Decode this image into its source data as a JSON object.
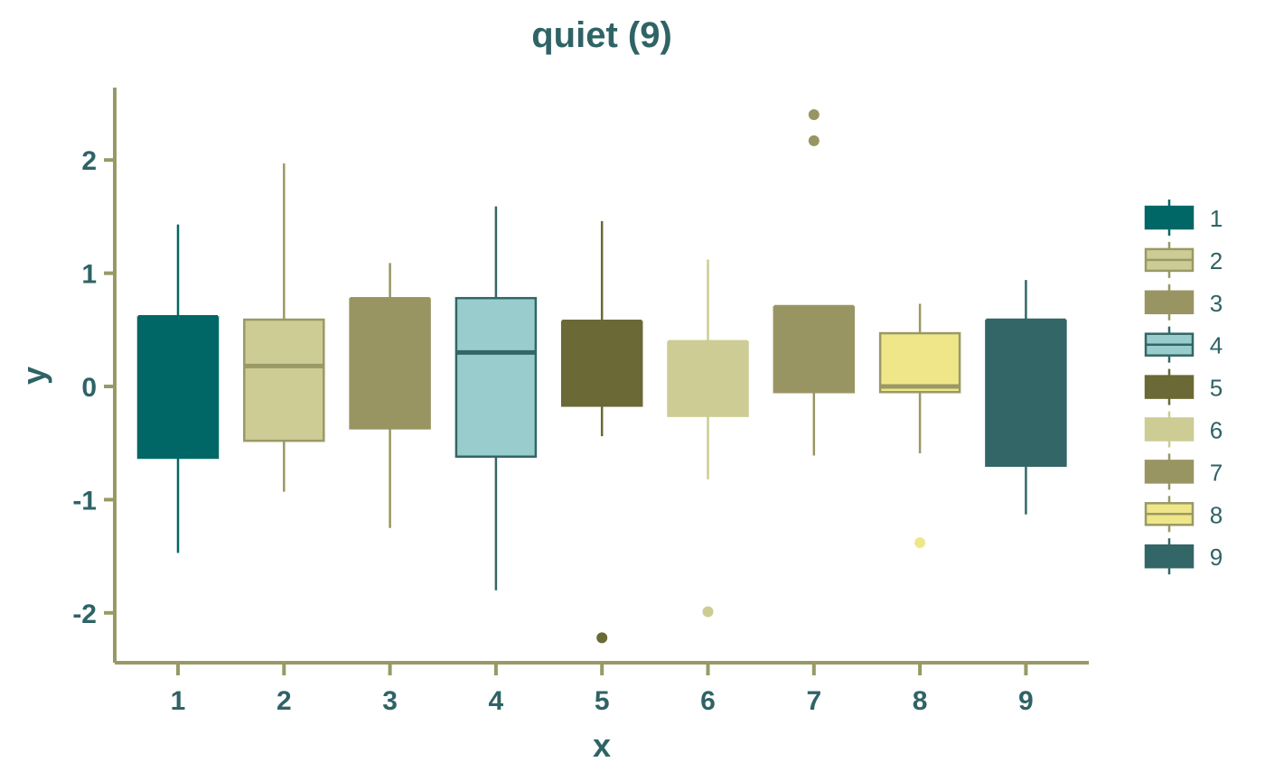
{
  "chart_data": {
    "type": "boxplot",
    "title": "quiet (9)",
    "xlabel": "x",
    "ylabel": "y",
    "ylim": [
      -2.5,
      2.6
    ],
    "yticks": [
      -2,
      -1,
      0,
      1,
      2
    ],
    "ytick_labels": [
      "-2",
      "-1",
      "0",
      "1",
      "2"
    ],
    "categories": [
      "1",
      "2",
      "3",
      "4",
      "5",
      "6",
      "7",
      "8",
      "9"
    ],
    "grid": false,
    "legend_placement": "right",
    "legend_labels": [
      "1",
      "2",
      "3",
      "4",
      "5",
      "6",
      "7",
      "8",
      "9"
    ],
    "boxes": [
      {
        "category": "1",
        "fill": "#006666",
        "line": "#006666",
        "whisker_low": -1.47,
        "q1": -0.63,
        "median": 0.61,
        "q3": 0.61,
        "whisker_high": 1.43,
        "outliers": []
      },
      {
        "category": "2",
        "fill": "#cccc94",
        "line": "#999966",
        "whisker_low": -0.93,
        "q1": -0.48,
        "median": 0.18,
        "q3": 0.59,
        "whisker_high": 1.97,
        "outliers": []
      },
      {
        "category": "3",
        "fill": "#999562",
        "line": "#999562",
        "whisker_low": -1.25,
        "q1": -0.37,
        "median": 0.77,
        "q3": 0.77,
        "whisker_high": 1.09,
        "outliers": []
      },
      {
        "category": "4",
        "fill": "#99cccc",
        "line": "#336666",
        "whisker_low": -1.8,
        "q1": -0.62,
        "median": 0.3,
        "q3": 0.78,
        "whisker_high": 1.59,
        "outliers": []
      },
      {
        "category": "5",
        "fill": "#6b6935",
        "line": "#6b6935",
        "whisker_low": -0.44,
        "q1": -0.17,
        "median": 0.57,
        "q3": 0.57,
        "whisker_high": 1.46,
        "outliers": [
          -2.22
        ]
      },
      {
        "category": "6",
        "fill": "#cccc94",
        "line": "#cccc94",
        "whisker_low": -0.82,
        "q1": -0.26,
        "median": 0.39,
        "q3": 0.39,
        "whisker_high": 1.12,
        "outliers": [
          -1.99
        ]
      },
      {
        "category": "7",
        "fill": "#999562",
        "line": "#999562",
        "whisker_low": -0.61,
        "q1": -0.05,
        "median": 0.7,
        "q3": 0.7,
        "whisker_high": 0.7,
        "outliers": [
          2.4,
          2.17
        ]
      },
      {
        "category": "8",
        "fill": "#efe68a",
        "line": "#999966",
        "whisker_low": -0.59,
        "q1": -0.05,
        "median": 0.0,
        "q3": 0.47,
        "whisker_high": 0.73,
        "outliers": [
          -1.38
        ]
      },
      {
        "category": "9",
        "fill": "#336666",
        "line": "#336666",
        "whisker_low": -1.13,
        "q1": -0.7,
        "median": 0.58,
        "q3": 0.58,
        "whisker_high": 0.94,
        "outliers": []
      }
    ]
  },
  "colors": {
    "axis_line": "#999966",
    "text": "#2f6366",
    "background": "#ffffff"
  }
}
